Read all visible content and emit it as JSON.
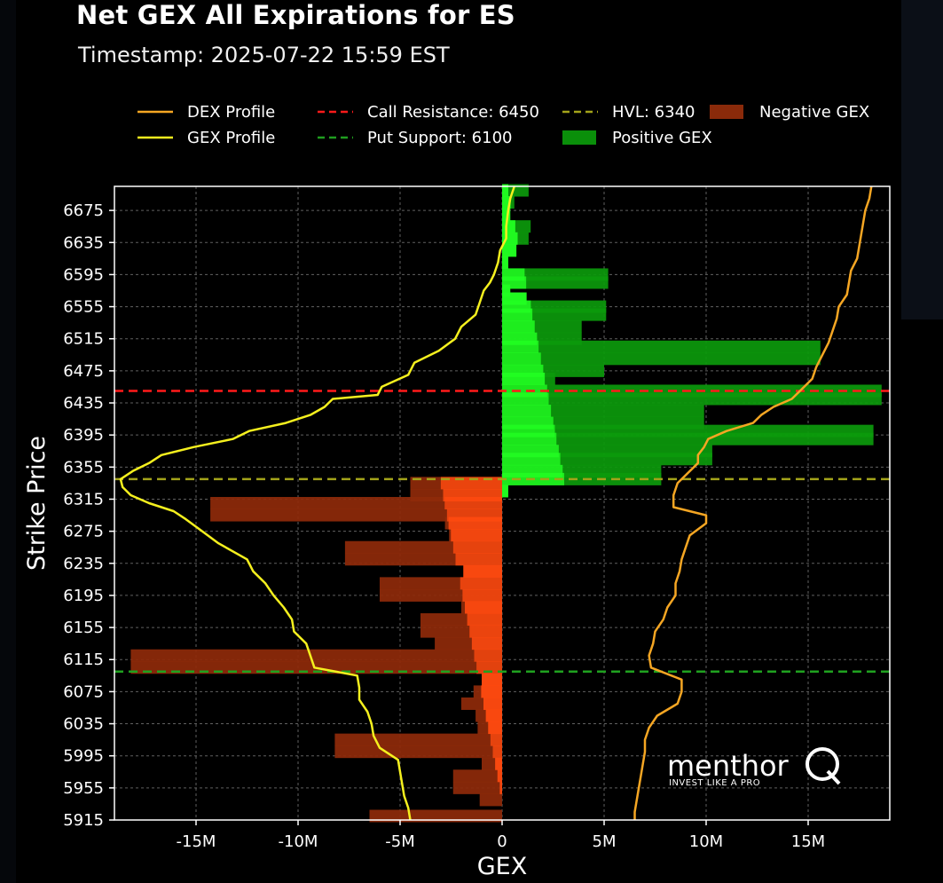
{
  "title": "Net GEX All Expirations for ES",
  "subtitle": "Timestamp: 2025-07-22 15:59 EST",
  "logo": {
    "name": "menthor",
    "tagline": "INVEST LIKE A PRO"
  },
  "chart_data": {
    "type": "bar",
    "orientation": "horizontal",
    "xlabel": "GEX",
    "ylabel": "Strike Price",
    "xlim": [
      -19000000,
      19000000
    ],
    "ylim": [
      5915,
      6705
    ],
    "x_ticks": [
      -15000000,
      -10000000,
      -5000000,
      0,
      5000000,
      10000000,
      15000000
    ],
    "x_tick_labels": [
      "-15M",
      "-10M",
      "-5M",
      "0",
      "5M",
      "10M",
      "15M"
    ],
    "y_ticks": [
      5915,
      5955,
      5995,
      6035,
      6075,
      6115,
      6155,
      6195,
      6235,
      6275,
      6315,
      6355,
      6395,
      6435,
      6475,
      6515,
      6555,
      6595,
      6635,
      6675
    ],
    "grid": true,
    "legend_position": "top",
    "legend": [
      {
        "label": "DEX Profile",
        "kind": "line",
        "color": "#f5a623"
      },
      {
        "label": "GEX Profile",
        "kind": "line",
        "color": "#f5f01e"
      },
      {
        "label": "Call Resistance: 6450",
        "kind": "dashed",
        "color": "#ff1a1a"
      },
      {
        "label": "Put Support: 6100",
        "kind": "dashed",
        "color": "#1f9e1f"
      },
      {
        "label": "HVL: 6340",
        "kind": "dashed",
        "color": "#a3a31a"
      },
      {
        "label": "Positive GEX",
        "kind": "patch",
        "color": "#0a8f0a"
      },
      {
        "label": "Negative GEX",
        "kind": "patch",
        "color": "#8a2a0a"
      }
    ],
    "levels": {
      "call_resistance": 6450,
      "put_support": 6100,
      "hvl": 6340
    },
    "colors": {
      "positive": "#0c9a0c",
      "negative": "#8f2a0a",
      "dex": "#f5a623",
      "gex": "#f5f01e"
    },
    "series": [
      {
        "name": "Positive GEX",
        "strike_gex": [
          [
            6700,
            1300000
          ],
          [
            6685,
            600000
          ],
          [
            6670,
            400000
          ],
          [
            6655,
            1400000
          ],
          [
            6640,
            1300000
          ],
          [
            6625,
            700000
          ],
          [
            6610,
            300000
          ],
          [
            6595,
            5200000
          ],
          [
            6585,
            5200000
          ],
          [
            6575,
            400000
          ],
          [
            6565,
            1200000
          ],
          [
            6555,
            5100000
          ],
          [
            6545,
            5100000
          ],
          [
            6530,
            3900000
          ],
          [
            6515,
            3900000
          ],
          [
            6505,
            15600000
          ],
          [
            6490,
            15600000
          ],
          [
            6475,
            5000000
          ],
          [
            6465,
            2600000
          ],
          [
            6450,
            18600000
          ],
          [
            6440,
            18600000
          ],
          [
            6425,
            9900000
          ],
          [
            6410,
            9900000
          ],
          [
            6400,
            18200000
          ],
          [
            6390,
            18200000
          ],
          [
            6375,
            10300000
          ],
          [
            6365,
            10300000
          ],
          [
            6350,
            7800000
          ],
          [
            6340,
            7800000
          ],
          [
            6325,
            300000
          ]
        ]
      },
      {
        "name": "Negative GEX",
        "strike_gex": [
          [
            6335,
            -4500000
          ],
          [
            6320,
            -4500000
          ],
          [
            6310,
            -14300000
          ],
          [
            6295,
            -14300000
          ],
          [
            6285,
            -2800000
          ],
          [
            6270,
            -2600000
          ],
          [
            6255,
            -7700000
          ],
          [
            6240,
            -7700000
          ],
          [
            6225,
            -1900000
          ],
          [
            6210,
            -6000000
          ],
          [
            6195,
            -6000000
          ],
          [
            6180,
            -2000000
          ],
          [
            6165,
            -4000000
          ],
          [
            6150,
            -4000000
          ],
          [
            6135,
            -3300000
          ],
          [
            6120,
            -18200000
          ],
          [
            6105,
            -18200000
          ],
          [
            6090,
            -1000000
          ],
          [
            6075,
            -1400000
          ],
          [
            6060,
            -2000000
          ],
          [
            6045,
            -1300000
          ],
          [
            6030,
            -1200000
          ],
          [
            6015,
            -8200000
          ],
          [
            6000,
            -8200000
          ],
          [
            5985,
            -1000000
          ],
          [
            5970,
            -2400000
          ],
          [
            5955,
            -2400000
          ],
          [
            5940,
            -1100000
          ],
          [
            5920,
            -6500000
          ]
        ]
      },
      {
        "name": "GEX Profile",
        "points": [
          [
            6705,
            600000
          ],
          [
            6690,
            400000
          ],
          [
            6675,
            300000
          ],
          [
            6655,
            200000
          ],
          [
            6640,
            200000
          ],
          [
            6625,
            -100000
          ],
          [
            6610,
            -200000
          ],
          [
            6595,
            -400000
          ],
          [
            6585,
            -600000
          ],
          [
            6575,
            -900000
          ],
          [
            6560,
            -1100000
          ],
          [
            6545,
            -1300000
          ],
          [
            6530,
            -2000000
          ],
          [
            6515,
            -2300000
          ],
          [
            6500,
            -3100000
          ],
          [
            6485,
            -4300000
          ],
          [
            6470,
            -4600000
          ],
          [
            6455,
            -5900000
          ],
          [
            6445,
            -6100000
          ],
          [
            6440,
            -8300000
          ],
          [
            6430,
            -8700000
          ],
          [
            6420,
            -9400000
          ],
          [
            6410,
            -10600000
          ],
          [
            6400,
            -12400000
          ],
          [
            6390,
            -13200000
          ],
          [
            6380,
            -15100000
          ],
          [
            6370,
            -16700000
          ],
          [
            6360,
            -17300000
          ],
          [
            6350,
            -18100000
          ],
          [
            6340,
            -18700000
          ],
          [
            6330,
            -18600000
          ],
          [
            6320,
            -18200000
          ],
          [
            6310,
            -17300000
          ],
          [
            6300,
            -16100000
          ],
          [
            6290,
            -15500000
          ],
          [
            6275,
            -14700000
          ],
          [
            6260,
            -13900000
          ],
          [
            6240,
            -12500000
          ],
          [
            6225,
            -12200000
          ],
          [
            6210,
            -11600000
          ],
          [
            6195,
            -11200000
          ],
          [
            6180,
            -10700000
          ],
          [
            6165,
            -10300000
          ],
          [
            6150,
            -10200000
          ],
          [
            6135,
            -9600000
          ],
          [
            6120,
            -9400000
          ],
          [
            6105,
            -9200000
          ],
          [
            6095,
            -7100000
          ],
          [
            6080,
            -7000000
          ],
          [
            6065,
            -7000000
          ],
          [
            6050,
            -6600000
          ],
          [
            6035,
            -6400000
          ],
          [
            6020,
            -6300000
          ],
          [
            6005,
            -6000000
          ],
          [
            5990,
            -5100000
          ],
          [
            5975,
            -5000000
          ],
          [
            5960,
            -4900000
          ],
          [
            5945,
            -4800000
          ],
          [
            5930,
            -4600000
          ],
          [
            5915,
            -4500000
          ]
        ]
      },
      {
        "name": "DEX Profile",
        "points": [
          [
            6705,
            18100000
          ],
          [
            6690,
            18000000
          ],
          [
            6675,
            17800000
          ],
          [
            6660,
            17700000
          ],
          [
            6645,
            17600000
          ],
          [
            6630,
            17500000
          ],
          [
            6615,
            17400000
          ],
          [
            6600,
            17100000
          ],
          [
            6585,
            17000000
          ],
          [
            6570,
            16900000
          ],
          [
            6555,
            16500000
          ],
          [
            6540,
            16400000
          ],
          [
            6525,
            16200000
          ],
          [
            6510,
            16000000
          ],
          [
            6495,
            15700000
          ],
          [
            6480,
            15400000
          ],
          [
            6465,
            15200000
          ],
          [
            6450,
            14600000
          ],
          [
            6440,
            14200000
          ],
          [
            6430,
            13300000
          ],
          [
            6420,
            12700000
          ],
          [
            6410,
            12300000
          ],
          [
            6400,
            11000000
          ],
          [
            6390,
            10100000
          ],
          [
            6380,
            9900000
          ],
          [
            6370,
            9600000
          ],
          [
            6360,
            9600000
          ],
          [
            6345,
            9000000
          ],
          [
            6335,
            8600000
          ],
          [
            6320,
            8400000
          ],
          [
            6305,
            8400000
          ],
          [
            6295,
            10000000
          ],
          [
            6285,
            10000000
          ],
          [
            6270,
            9200000
          ],
          [
            6255,
            9000000
          ],
          [
            6240,
            8800000
          ],
          [
            6225,
            8700000
          ],
          [
            6210,
            8500000
          ],
          [
            6195,
            8500000
          ],
          [
            6180,
            8100000
          ],
          [
            6165,
            7900000
          ],
          [
            6150,
            7500000
          ],
          [
            6135,
            7400000
          ],
          [
            6120,
            7200000
          ],
          [
            6105,
            7300000
          ],
          [
            6090,
            8800000
          ],
          [
            6075,
            8800000
          ],
          [
            6060,
            8600000
          ],
          [
            6045,
            7600000
          ],
          [
            6030,
            7200000
          ],
          [
            6015,
            7000000
          ],
          [
            6000,
            7000000
          ],
          [
            5985,
            6900000
          ],
          [
            5970,
            6800000
          ],
          [
            5955,
            6700000
          ],
          [
            5940,
            6600000
          ],
          [
            5925,
            6500000
          ],
          [
            5915,
            6500000
          ]
        ]
      }
    ]
  }
}
